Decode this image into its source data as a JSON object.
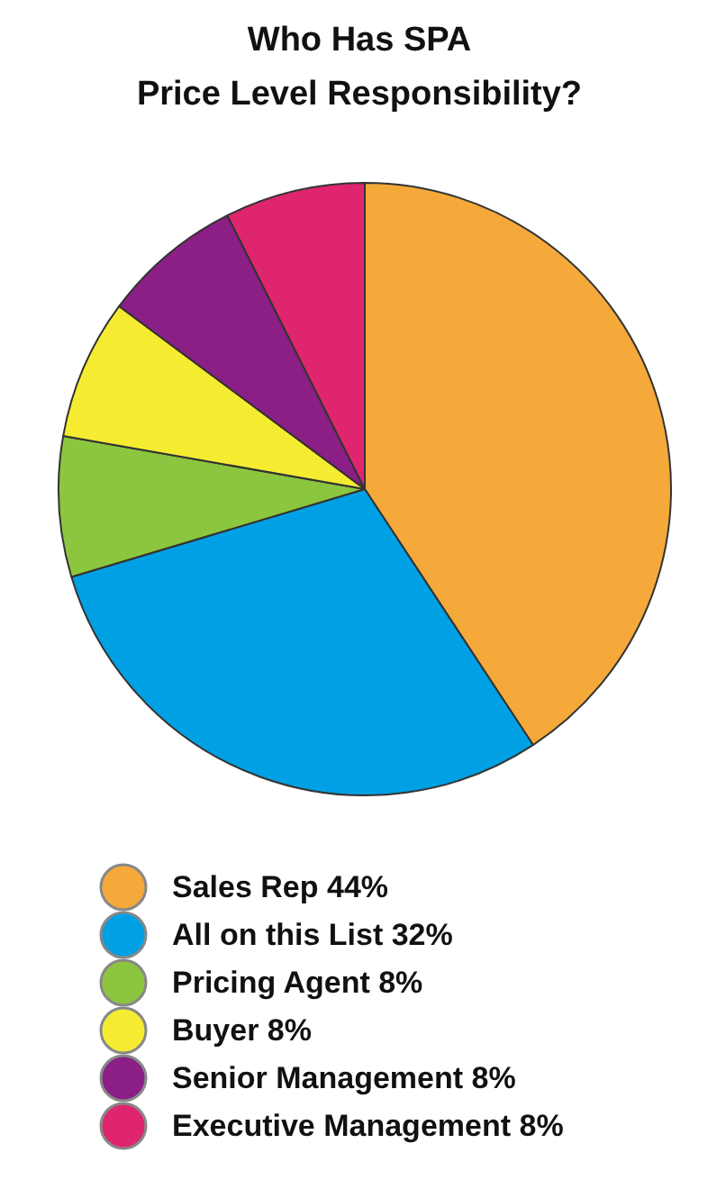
{
  "chart_data": {
    "type": "pie",
    "title": "Who Has SPA\nPrice Level Responsibility?",
    "categories": [
      "Sales Rep 44%",
      "All on this List 32%",
      "Pricing Agent 8%",
      "Buyer 8%",
      "Senior Management 8%",
      "Executive Management 8%"
    ],
    "values": [
      44,
      32,
      8,
      8,
      8,
      8
    ],
    "colors": [
      "#f4a93a",
      "#00a0e4",
      "#8cc63f",
      "#f5ec31",
      "#8b1f86",
      "#e0256f"
    ],
    "legend": "bottom"
  }
}
